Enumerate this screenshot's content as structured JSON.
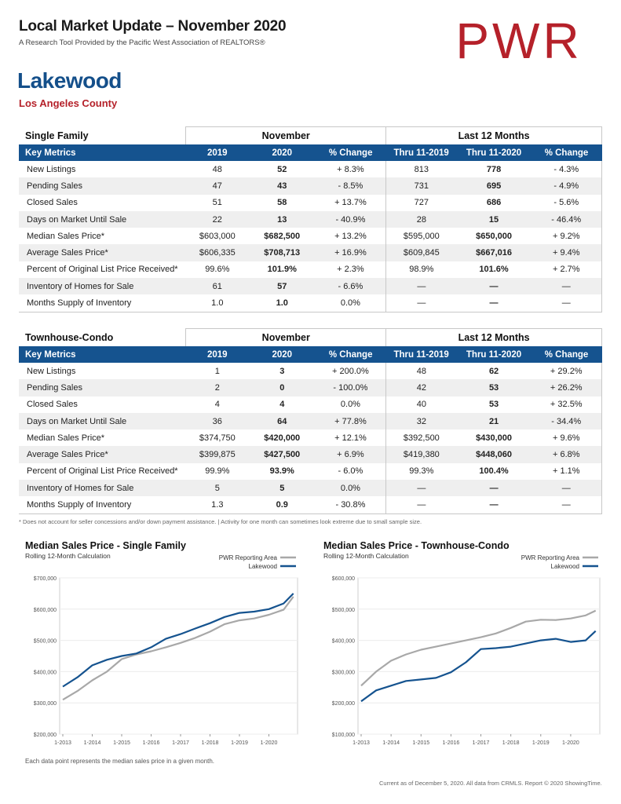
{
  "header": {
    "title": "Local Market Update – November 2020",
    "subtitle": "A Research Tool Provided by the Pacific West Association of REALTORS®",
    "logo_text": "PWR",
    "brand_color": "#b5212a",
    "area_color": "#144f8a"
  },
  "area": {
    "name": "Lakewood",
    "county": "Los Angeles County"
  },
  "columns": {
    "key_metrics": "Key Metrics",
    "november": "November",
    "last12": "Last 12 Months",
    "y2019": "2019",
    "y2020": "2020",
    "pct": "% Change",
    "thru2019": "Thru 11-2019",
    "thru2020": "Thru 11-2020"
  },
  "single_family": {
    "title": "Single Family",
    "rows": [
      {
        "metric": "New Listings",
        "a": "48",
        "b": "52",
        "c": "+ 8.3%",
        "d": "813",
        "e": "778",
        "f": "- 4.3%"
      },
      {
        "metric": "Pending Sales",
        "a": "47",
        "b": "43",
        "c": "- 8.5%",
        "d": "731",
        "e": "695",
        "f": "- 4.9%"
      },
      {
        "metric": "Closed Sales",
        "a": "51",
        "b": "58",
        "c": "+ 13.7%",
        "d": "727",
        "e": "686",
        "f": "- 5.6%"
      },
      {
        "metric": "Days on Market Until Sale",
        "a": "22",
        "b": "13",
        "c": "- 40.9%",
        "d": "28",
        "e": "15",
        "f": "- 46.4%"
      },
      {
        "metric": "Median Sales Price*",
        "a": "$603,000",
        "b": "$682,500",
        "c": "+ 13.2%",
        "d": "$595,000",
        "e": "$650,000",
        "f": "+ 9.2%"
      },
      {
        "metric": "Average Sales Price*",
        "a": "$606,335",
        "b": "$708,713",
        "c": "+ 16.9%",
        "d": "$609,845",
        "e": "$667,016",
        "f": "+ 9.4%"
      },
      {
        "metric": "Percent of Original List Price Received*",
        "a": "99.6%",
        "b": "101.9%",
        "c": "+ 2.3%",
        "d": "98.9%",
        "e": "101.6%",
        "f": "+ 2.7%"
      },
      {
        "metric": "Inventory of Homes for Sale",
        "a": "61",
        "b": "57",
        "c": "- 6.6%",
        "d": "—",
        "e": "—",
        "f": "—"
      },
      {
        "metric": "Months Supply of Inventory",
        "a": "1.0",
        "b": "1.0",
        "c": "0.0%",
        "d": "—",
        "e": "—",
        "f": "—"
      }
    ]
  },
  "townhouse": {
    "title": "Townhouse-Condo",
    "rows": [
      {
        "metric": "New Listings",
        "a": "1",
        "b": "3",
        "c": "+ 200.0%",
        "d": "48",
        "e": "62",
        "f": "+ 29.2%"
      },
      {
        "metric": "Pending Sales",
        "a": "2",
        "b": "0",
        "c": "- 100.0%",
        "d": "42",
        "e": "53",
        "f": "+ 26.2%"
      },
      {
        "metric": "Closed Sales",
        "a": "4",
        "b": "4",
        "c": "0.0%",
        "d": "40",
        "e": "53",
        "f": "+ 32.5%"
      },
      {
        "metric": "Days on Market Until Sale",
        "a": "36",
        "b": "64",
        "c": "+ 77.8%",
        "d": "32",
        "e": "21",
        "f": "- 34.4%"
      },
      {
        "metric": "Median Sales Price*",
        "a": "$374,750",
        "b": "$420,000",
        "c": "+ 12.1%",
        "d": "$392,500",
        "e": "$430,000",
        "f": "+ 9.6%"
      },
      {
        "metric": "Average Sales Price*",
        "a": "$399,875",
        "b": "$427,500",
        "c": "+ 6.9%",
        "d": "$419,380",
        "e": "$448,060",
        "f": "+ 6.8%"
      },
      {
        "metric": "Percent of Original List Price Received*",
        "a": "99.9%",
        "b": "93.9%",
        "c": "- 6.0%",
        "d": "99.3%",
        "e": "100.4%",
        "f": "+ 1.1%"
      },
      {
        "metric": "Inventory of Homes for Sale",
        "a": "5",
        "b": "5",
        "c": "0.0%",
        "d": "—",
        "e": "—",
        "f": "—"
      },
      {
        "metric": "Months Supply of Inventory",
        "a": "1.3",
        "b": "0.9",
        "c": "- 30.8%",
        "d": "—",
        "e": "—",
        "f": "—"
      }
    ]
  },
  "footnote": "* Does not account for seller concessions and/or down payment assistance. | Activity for one month can sometimes look extreme due to small sample size.",
  "bottom_note": "Each data point represents the median sales price in a given month.",
  "current_note": "Current as of December 5, 2020. All data from CRMLS. Report © 2020 ShowingTime.",
  "chart_data": [
    {
      "type": "line",
      "title": "Median Sales Price - Single Family",
      "subtitle": "Rolling 12-Month Calculation",
      "x_ticks": [
        "1-2013",
        "1-2014",
        "1-2015",
        "1-2016",
        "1-2017",
        "1-2018",
        "1-2019",
        "1-2020"
      ],
      "y_ticks": [
        "$200,000",
        "$300,000",
        "$400,000",
        "$500,000",
        "$600,000",
        "$700,000"
      ],
      "ylim": [
        200000,
        700000
      ],
      "x": [
        "1-2013",
        "7-2013",
        "1-2014",
        "7-2014",
        "1-2015",
        "7-2015",
        "1-2016",
        "7-2016",
        "1-2017",
        "7-2017",
        "1-2018",
        "7-2018",
        "1-2019",
        "7-2019",
        "1-2020",
        "7-2020",
        "11-2020"
      ],
      "series": [
        {
          "name": "PWR Reporting Area",
          "color": "#a8a8a8",
          "values": [
            310000,
            338000,
            372000,
            400000,
            440000,
            455000,
            465000,
            478000,
            492000,
            508000,
            528000,
            552000,
            564000,
            570000,
            582000,
            598000,
            640000
          ]
        },
        {
          "name": "Lakewood",
          "color": "#15538f",
          "values": [
            352000,
            382000,
            420000,
            438000,
            450000,
            458000,
            478000,
            505000,
            520000,
            538000,
            555000,
            575000,
            588000,
            592000,
            600000,
            618000,
            650000
          ]
        }
      ],
      "legend": "top-right"
    },
    {
      "type": "line",
      "title": "Median Sales Price - Townhouse-Condo",
      "subtitle": "Rolling 12-Month Calculation",
      "x_ticks": [
        "1-2013",
        "1-2014",
        "1-2015",
        "1-2016",
        "1-2017",
        "1-2018",
        "1-2019",
        "1-2020"
      ],
      "y_ticks": [
        "$100,000",
        "$200,000",
        "$300,000",
        "$400,000",
        "$500,000",
        "$600,000"
      ],
      "ylim": [
        100000,
        600000
      ],
      "x": [
        "1-2013",
        "7-2013",
        "1-2014",
        "7-2014",
        "1-2015",
        "7-2015",
        "1-2016",
        "7-2016",
        "1-2017",
        "7-2017",
        "1-2018",
        "7-2018",
        "1-2019",
        "7-2019",
        "1-2020",
        "7-2020",
        "11-2020"
      ],
      "series": [
        {
          "name": "PWR Reporting Area",
          "color": "#a8a8a8",
          "values": [
            255000,
            300000,
            335000,
            355000,
            370000,
            380000,
            390000,
            400000,
            410000,
            422000,
            440000,
            460000,
            466000,
            465000,
            470000,
            480000,
            495000
          ]
        },
        {
          "name": "Lakewood",
          "color": "#15538f",
          "values": [
            205000,
            240000,
            255000,
            270000,
            275000,
            280000,
            298000,
            330000,
            372000,
            375000,
            380000,
            390000,
            400000,
            405000,
            395000,
            400000,
            430000
          ]
        }
      ],
      "legend": "top-right"
    }
  ]
}
